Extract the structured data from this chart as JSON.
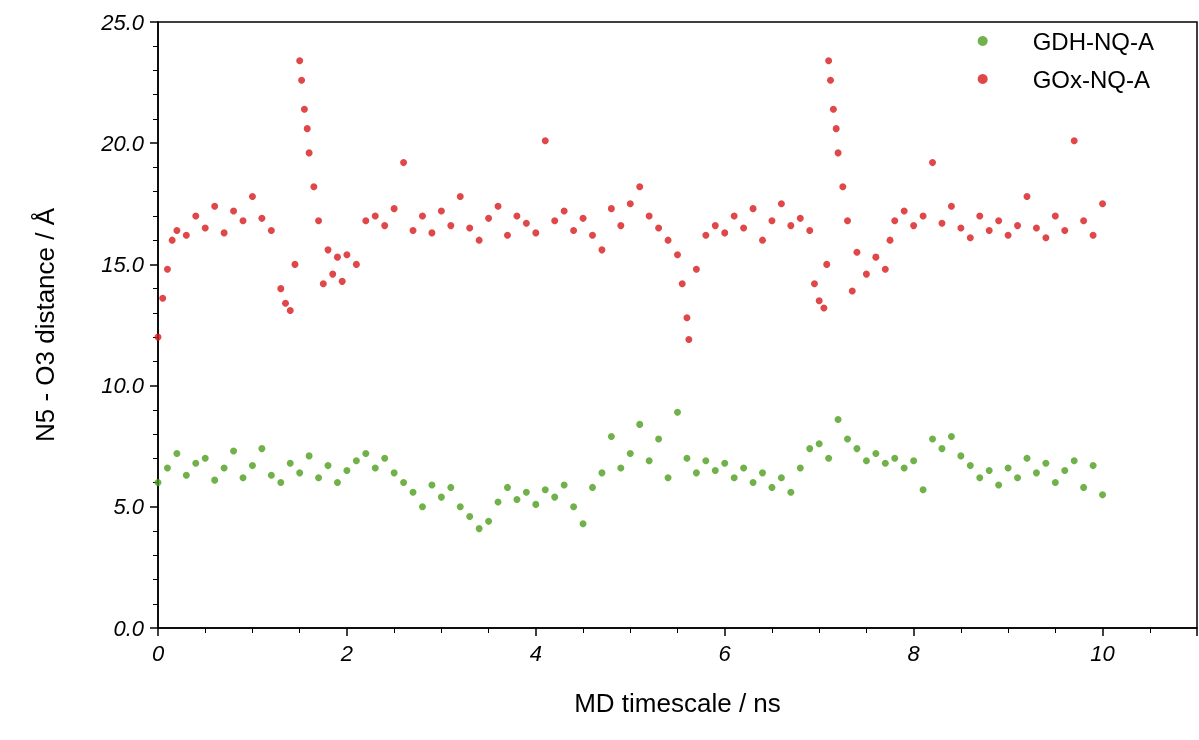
{
  "chart_data": {
    "type": "scatter",
    "xlabel": "MD timescale / ns",
    "ylabel": "N5 - O3 distance / Å",
    "xlim": [
      0,
      11
    ],
    "xticks": [
      0,
      2,
      4,
      6,
      8,
      10
    ],
    "ylim": [
      0,
      25
    ],
    "yticks": [
      {
        "value": 0,
        "label": "0.0"
      },
      {
        "value": 5,
        "label": "5.0"
      },
      {
        "value": 10,
        "label": "10.0"
      },
      {
        "value": 15,
        "label": "15.0"
      },
      {
        "value": 20,
        "label": "20.0"
      },
      {
        "value": 25,
        "label": "25.0"
      }
    ],
    "grid": false,
    "legend": "top right",
    "marker": "circle",
    "series": [
      {
        "name": "GDH-NQ-A",
        "color": "#4d9e1c",
        "x": [
          0,
          0.1,
          0.2,
          0.3,
          0.4,
          0.5,
          0.6,
          0.7,
          0.8,
          0.9,
          1,
          1.1,
          1.2,
          1.3,
          1.4,
          1.5,
          1.6,
          1.7,
          1.8,
          1.9,
          2,
          2.1,
          2.2,
          2.3,
          2.4,
          2.5,
          2.6,
          2.7,
          2.8,
          2.9,
          3,
          3.1,
          3.2,
          3.3,
          3.4,
          3.5,
          3.6,
          3.7,
          3.8,
          3.9,
          4,
          4.1,
          4.2,
          4.3,
          4.4,
          4.5,
          4.6,
          4.7,
          4.8,
          4.9,
          5,
          5.1,
          5.2,
          5.3,
          5.4,
          5.5,
          5.6,
          5.7,
          5.8,
          5.9,
          6,
          6.1,
          6.2,
          6.3,
          6.4,
          6.5,
          6.6,
          6.7,
          6.8,
          6.9,
          7,
          7.1,
          7.2,
          7.3,
          7.4,
          7.5,
          7.6,
          7.7,
          7.8,
          7.9,
          8,
          8.1,
          8.2,
          8.3,
          8.4,
          8.5,
          8.6,
          8.7,
          8.8,
          8.9,
          9,
          9.1,
          9.2,
          9.3,
          9.4,
          9.5,
          9.6,
          9.7,
          9.8,
          9.9,
          10
        ],
        "values": [
          6.0,
          6.6,
          7.2,
          6.3,
          6.8,
          7.0,
          6.1,
          6.6,
          7.3,
          6.2,
          6.7,
          7.4,
          6.3,
          6.0,
          6.8,
          6.4,
          7.1,
          6.2,
          6.7,
          6.0,
          6.5,
          6.9,
          7.2,
          6.6,
          7.0,
          6.4,
          6.0,
          5.6,
          5.0,
          5.9,
          5.4,
          5.8,
          5.0,
          4.6,
          4.1,
          4.4,
          5.2,
          5.8,
          5.3,
          5.6,
          5.1,
          5.7,
          5.4,
          5.9,
          5.0,
          4.3,
          5.8,
          6.4,
          7.9,
          6.6,
          7.2,
          8.4,
          6.9,
          7.8,
          6.2,
          8.9,
          7.0,
          6.4,
          6.9,
          6.5,
          6.8,
          6.2,
          6.6,
          6.0,
          6.4,
          5.8,
          6.2,
          5.6,
          6.6,
          7.4,
          7.6,
          7.0,
          8.6,
          7.8,
          7.4,
          6.9,
          7.2,
          6.8,
          7.0,
          6.6,
          6.9,
          5.7,
          7.8,
          7.4,
          7.9,
          7.1,
          6.7,
          6.2,
          6.5,
          5.9,
          6.6,
          6.2,
          7.0,
          6.4,
          6.8,
          6.0,
          6.5,
          6.9,
          5.8,
          6.7,
          5.5
        ]
      },
      {
        "name": "GOx-NQ-A",
        "color": "#d7191c",
        "x": [
          0,
          0.05,
          0.1,
          0.15,
          0.2,
          0.3,
          0.4,
          0.5,
          0.6,
          0.7,
          0.8,
          0.9,
          1,
          1.1,
          1.2,
          1.3,
          1.35,
          1.4,
          1.45,
          1.5,
          1.52,
          1.55,
          1.58,
          1.6,
          1.65,
          1.7,
          1.75,
          1.8,
          1.85,
          1.9,
          1.95,
          2,
          2.1,
          2.2,
          2.3,
          2.4,
          2.5,
          2.6,
          2.7,
          2.8,
          2.9,
          3,
          3.1,
          3.2,
          3.3,
          3.4,
          3.5,
          3.6,
          3.7,
          3.8,
          3.9,
          4,
          4.1,
          4.2,
          4.3,
          4.4,
          4.5,
          4.6,
          4.7,
          4.8,
          4.9,
          5,
          5.1,
          5.2,
          5.3,
          5.4,
          5.5,
          5.55,
          5.6,
          5.62,
          5.7,
          5.8,
          5.9,
          6,
          6.1,
          6.2,
          6.3,
          6.4,
          6.5,
          6.6,
          6.7,
          6.8,
          6.9,
          6.95,
          7,
          7.05,
          7.08,
          7.1,
          7.12,
          7.15,
          7.18,
          7.2,
          7.25,
          7.3,
          7.35,
          7.4,
          7.5,
          7.6,
          7.7,
          7.75,
          7.8,
          7.9,
          8,
          8.1,
          8.2,
          8.3,
          8.4,
          8.5,
          8.6,
          8.7,
          8.8,
          8.9,
          9,
          9.1,
          9.2,
          9.3,
          9.4,
          9.5,
          9.6,
          9.7,
          9.8,
          9.9,
          10
        ],
        "values": [
          12.0,
          13.6,
          14.8,
          16.0,
          16.4,
          16.2,
          17.0,
          16.5,
          17.4,
          16.3,
          17.2,
          16.8,
          17.8,
          16.9,
          16.4,
          14.0,
          13.4,
          13.1,
          15.0,
          23.4,
          22.6,
          21.4,
          20.6,
          19.6,
          18.2,
          16.8,
          14.2,
          15.6,
          14.6,
          15.3,
          14.3,
          15.4,
          15.0,
          16.8,
          17.0,
          16.6,
          17.3,
          19.2,
          16.4,
          17.0,
          16.3,
          17.2,
          16.6,
          17.8,
          16.5,
          16.0,
          16.9,
          17.4,
          16.2,
          17.0,
          16.7,
          16.3,
          20.1,
          16.8,
          17.2,
          16.4,
          16.9,
          16.2,
          15.6,
          17.3,
          16.6,
          17.5,
          18.2,
          17.0,
          16.5,
          16.0,
          15.4,
          14.2,
          12.8,
          11.9,
          14.8,
          16.2,
          16.6,
          16.3,
          17.0,
          16.5,
          17.3,
          16.0,
          16.8,
          17.5,
          16.6,
          16.9,
          16.4,
          14.2,
          13.5,
          13.2,
          15.0,
          23.4,
          22.6,
          21.4,
          20.6,
          19.6,
          18.2,
          16.8,
          13.9,
          15.5,
          14.6,
          15.3,
          14.8,
          16.0,
          16.8,
          17.2,
          16.6,
          17.0,
          19.2,
          16.7,
          17.4,
          16.5,
          16.1,
          17.0,
          16.4,
          16.8,
          16.2,
          16.6,
          17.8,
          16.5,
          16.1,
          17.0,
          16.4,
          20.1,
          16.8,
          16.2,
          17.5
        ]
      }
    ]
  }
}
